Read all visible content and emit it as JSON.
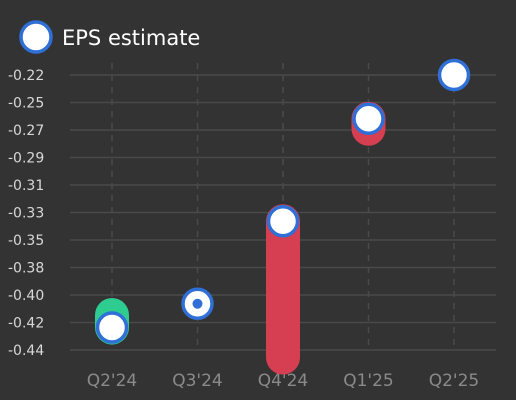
{
  "legend": {
    "label": "EPS estimate",
    "placement": "top-left"
  },
  "colors": {
    "background": "#333333",
    "grid": "#4a4a4a",
    "tick_text": "#d8d8d8",
    "category_text": "#8a8a8a",
    "estimate_fill": "#ffffff",
    "estimate_stroke": "#2f6fd6",
    "beat": "#2ecc91",
    "miss": "#d63e52"
  },
  "chart_data": {
    "type": "scatter",
    "title": "",
    "xlabel": "",
    "ylabel": "",
    "categories": [
      "Q2'24",
      "Q3'24",
      "Q4'24",
      "Q1'25",
      "Q2'25"
    ],
    "y_ticks": [
      "-0.22",
      "-0.25",
      "-0.27",
      "-0.29",
      "-0.31",
      "-0.33",
      "-0.35",
      "-0.38",
      "-0.40",
      "-0.42",
      "-0.44"
    ],
    "ylim": [
      -0.44,
      -0.22
    ],
    "grid": true,
    "series": [
      {
        "name": "EPS estimate",
        "values": [
          -0.422,
          -0.403,
          -0.337,
          -0.255,
          -0.22
        ]
      },
      {
        "values": [
          -0.412,
          -0.403,
          -0.446,
          -0.263,
          null
        ]
      }
    ]
  }
}
